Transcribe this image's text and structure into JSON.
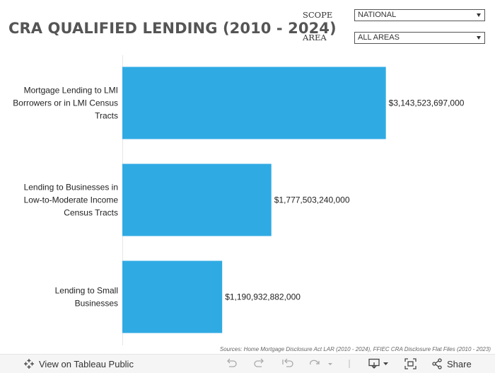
{
  "title": "CRA QUALIFIED LENDING (2010 - 2024)",
  "filters": {
    "scope": {
      "label": "SCOPE",
      "value": "NATIONAL"
    },
    "area": {
      "label": "AREA",
      "value": "ALL AREAS"
    }
  },
  "colors": {
    "bar": "#30aae3",
    "title": "#555555"
  },
  "chart_data": {
    "type": "bar",
    "orientation": "horizontal",
    "categories": [
      "Mortgage Lending to LMI Borrowers or in LMI Census Tracts",
      "Lending to Businesses in Low-to-Moderate Income Census Tracts",
      "Lending to Small Businesses"
    ],
    "category_lines": [
      [
        "Mortgage Lending to LMI",
        "Borrowers or in LMI Census",
        "Tracts"
      ],
      [
        "Lending to Businesses in",
        "Low-to-Moderate Income",
        "Census Tracts"
      ],
      [
        "Lending to Small",
        "Businesses"
      ]
    ],
    "values": [
      3143523697000,
      1777503240000,
      1190932882000
    ],
    "value_labels": [
      "$3,143,523,697,000",
      "$1,777,503,240,000",
      "$1,190,932,882,000"
    ],
    "xlim": [
      0,
      4150000000000
    ]
  },
  "source": "Sources: Home Mortgage Disclosure Act LAR (2010 - 2024), FFIEC CRA Disclosure Flat Files (2010 - 2023)",
  "footer": {
    "view_label": "View on Tableau Public",
    "share_label": "Share",
    "icons": [
      "tableau-logo-icon",
      "undo-icon",
      "redo-icon",
      "revert-icon",
      "refresh-icon",
      "download-icon",
      "fullscreen-icon",
      "share-icon"
    ]
  }
}
